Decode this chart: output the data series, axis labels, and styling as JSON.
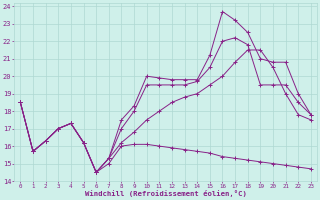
{
  "xlabel": "Windchill (Refroidissement éolien,°C)",
  "bg_color": "#cff0ea",
  "grid_color": "#aed8d2",
  "line_color": "#882288",
  "xlim": [
    -0.5,
    23.5
  ],
  "ylim": [
    14,
    24.2
  ],
  "xticks": [
    0,
    1,
    2,
    3,
    4,
    5,
    6,
    7,
    8,
    9,
    10,
    11,
    12,
    13,
    14,
    15,
    16,
    17,
    18,
    19,
    20,
    21,
    22,
    23
  ],
  "yticks": [
    14,
    15,
    16,
    17,
    18,
    19,
    20,
    21,
    22,
    23,
    24
  ],
  "series": [
    {
      "x": [
        0,
        1,
        2,
        3,
        4,
        5,
        6,
        7,
        8,
        9,
        10,
        11,
        12,
        13,
        14,
        15,
        16,
        17,
        18,
        19,
        20,
        21,
        22,
        23
      ],
      "y": [
        18.5,
        15.7,
        16.3,
        17.0,
        17.3,
        16.2,
        14.5,
        15.3,
        17.5,
        18.3,
        20.0,
        19.9,
        19.8,
        19.8,
        19.8,
        21.2,
        23.7,
        23.2,
        22.5,
        21.0,
        20.8,
        20.8,
        19.0,
        17.8
      ]
    },
    {
      "x": [
        0,
        1,
        2,
        3,
        4,
        5,
        6,
        7,
        8,
        9,
        10,
        11,
        12,
        13,
        14,
        15,
        16,
        17,
        18,
        19,
        20,
        21,
        22,
        23
      ],
      "y": [
        18.5,
        15.7,
        16.3,
        17.0,
        17.3,
        16.2,
        14.5,
        15.3,
        17.0,
        18.0,
        19.5,
        19.5,
        19.5,
        19.5,
        19.7,
        20.5,
        22.0,
        22.2,
        21.8,
        19.5,
        19.5,
        19.5,
        18.5,
        17.8
      ]
    },
    {
      "x": [
        0,
        1,
        2,
        3,
        4,
        5,
        6,
        7,
        8,
        9,
        10,
        11,
        12,
        13,
        14,
        15,
        16,
        17,
        18,
        19,
        20,
        21,
        22,
        23
      ],
      "y": [
        18.5,
        15.7,
        16.3,
        17.0,
        17.3,
        16.2,
        14.5,
        15.3,
        16.2,
        16.8,
        17.5,
        18.0,
        18.5,
        18.8,
        19.0,
        19.5,
        20.0,
        20.8,
        21.5,
        21.5,
        20.5,
        19.0,
        17.8,
        17.5
      ]
    },
    {
      "x": [
        0,
        1,
        2,
        3,
        4,
        5,
        6,
        7,
        8,
        9,
        10,
        11,
        12,
        13,
        14,
        15,
        16,
        17,
        18,
        19,
        20,
        21,
        22,
        23
      ],
      "y": [
        18.5,
        15.7,
        16.3,
        17.0,
        17.3,
        16.2,
        14.5,
        15.0,
        16.0,
        16.1,
        16.1,
        16.0,
        15.9,
        15.8,
        15.7,
        15.6,
        15.4,
        15.3,
        15.2,
        15.1,
        15.0,
        14.9,
        14.8,
        14.7
      ]
    }
  ]
}
